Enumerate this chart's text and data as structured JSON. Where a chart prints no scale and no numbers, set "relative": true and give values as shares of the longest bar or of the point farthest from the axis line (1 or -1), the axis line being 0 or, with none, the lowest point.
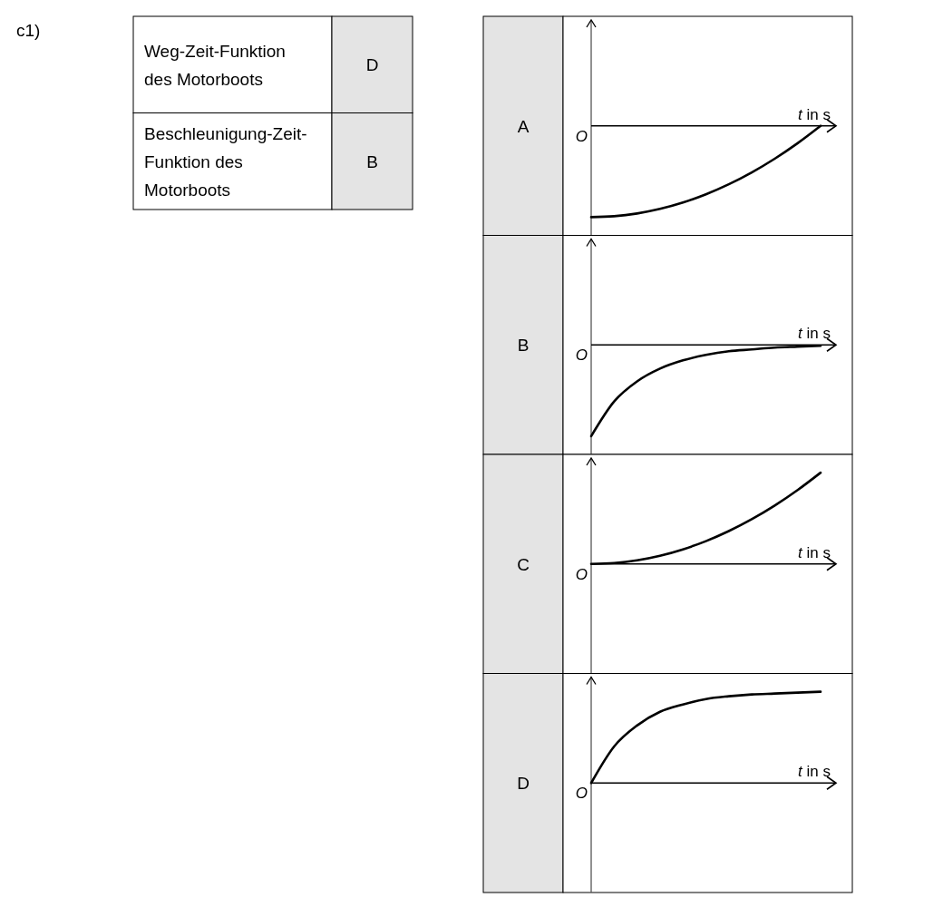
{
  "chart_data": [
    {
      "type": "other",
      "title": "c1)",
      "annotations": [
        "Weg-Zeit-Funktion des Motorboots",
        "D",
        "Beschleunigung-Zeit-Funktion des Motorboots",
        "B"
      ]
    },
    {
      "type": "line",
      "title": "A",
      "xlabel": "t in s",
      "relative": true,
      "annotations": [
        "O"
      ],
      "categories": [
        null,
        null,
        null,
        null,
        null,
        null,
        null,
        null,
        null,
        null,
        null
      ],
      "series": [
        {
          "color": "#000000",
          "values": [
            -1,
            -0.99,
            -0.96,
            -0.91,
            -0.84,
            -0.75,
            -0.64,
            -0.51,
            -0.36,
            -0.19,
            0
          ]
        }
      ]
    },
    {
      "type": "line",
      "title": "B",
      "xlabel": "t in s",
      "relative": true,
      "annotations": [
        "O"
      ],
      "categories": [
        null,
        null,
        null,
        null,
        null,
        null,
        null,
        null,
        null,
        null,
        null
      ],
      "series": [
        {
          "color": "#000000",
          "values": [
            -1,
            -0.62,
            -0.4,
            -0.26,
            -0.17,
            -0.11,
            -0.07,
            -0.05,
            -0.03,
            -0.02,
            -0.01
          ]
        }
      ]
    },
    {
      "type": "line",
      "title": "C",
      "xlabel": "t in s",
      "relative": true,
      "annotations": [
        "O"
      ],
      "categories": [
        null,
        null,
        null,
        null,
        null,
        null,
        null,
        null,
        null,
        null,
        null
      ],
      "series": [
        {
          "color": "#000000",
          "values": [
            0,
            0.01,
            0.04,
            0.09,
            0.16,
            0.25,
            0.36,
            0.49,
            0.64,
            0.81,
            1
          ]
        }
      ]
    },
    {
      "type": "line",
      "title": "D",
      "xlabel": "t in s",
      "relative": true,
      "annotations": [
        "O"
      ],
      "categories": [
        null,
        null,
        null,
        null,
        null,
        null,
        null,
        null,
        null,
        null,
        null
      ],
      "series": [
        {
          "color": "#000000",
          "values": [
            0,
            0.4,
            0.63,
            0.78,
            0.86,
            0.92,
            0.95,
            0.97,
            0.98,
            0.99,
            1
          ]
        }
      ]
    }
  ]
}
